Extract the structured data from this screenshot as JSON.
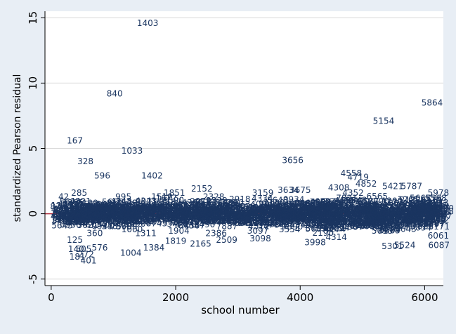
{
  "chart_data": {
    "type": "scatter",
    "xlabel": "school number",
    "ylabel": "standardized Pearson residual",
    "xlim": [
      -100,
      6300
    ],
    "ylim": [
      -5.5,
      15.5
    ],
    "x_ticks": [
      0,
      2000,
      4000,
      6000
    ],
    "y_ticks": [
      -5,
      0,
      5,
      10,
      15
    ],
    "grid": true,
    "reference_line_y": 0,
    "colors": {
      "background": "#e8eef5",
      "plot_bg": "#ffffff",
      "marker": "#1a3560",
      "grid": "#d9d9d9",
      "reference_line": "#b03040"
    },
    "labeled_points": [
      {
        "label": "1403",
        "x": 1550,
        "y": 14.6
      },
      {
        "label": "840",
        "x": 1020,
        "y": 9.2
      },
      {
        "label": "5864",
        "x": 6120,
        "y": 8.5
      },
      {
        "label": "5154",
        "x": 5340,
        "y": 7.1
      },
      {
        "label": "167",
        "x": 380,
        "y": 5.6
      },
      {
        "label": "1033",
        "x": 1300,
        "y": 4.8
      },
      {
        "label": "328",
        "x": 550,
        "y": 4.0
      },
      {
        "label": "3656",
        "x": 3880,
        "y": 4.1
      },
      {
        "label": "596",
        "x": 820,
        "y": 2.9
      },
      {
        "label": "1402",
        "x": 1620,
        "y": 2.9
      },
      {
        "label": "4558",
        "x": 4820,
        "y": 3.1
      },
      {
        "label": "4719",
        "x": 4930,
        "y": 2.8
      },
      {
        "label": "4852",
        "x": 5060,
        "y": 2.3
      },
      {
        "label": "5421",
        "x": 5490,
        "y": 2.1
      },
      {
        "label": "5787",
        "x": 5790,
        "y": 2.1
      },
      {
        "label": "5978",
        "x": 6220,
        "y": 1.6
      },
      {
        "label": "5568",
        "x": 6180,
        "y": 1.2
      },
      {
        "label": "5665",
        "x": 5930,
        "y": 1.2
      },
      {
        "label": "285",
        "x": 450,
        "y": 1.6
      },
      {
        "label": "42",
        "x": 200,
        "y": 1.3
      },
      {
        "label": "2152",
        "x": 2420,
        "y": 1.9
      },
      {
        "label": "1851",
        "x": 1980,
        "y": 1.6
      },
      {
        "label": "995",
        "x": 1160,
        "y": 1.3
      },
      {
        "label": "3159",
        "x": 3400,
        "y": 1.6
      },
      {
        "label": "3634",
        "x": 3810,
        "y": 1.8
      },
      {
        "label": "3675",
        "x": 4000,
        "y": 1.8
      },
      {
        "label": "4308",
        "x": 4620,
        "y": 2.0
      },
      {
        "label": "2918",
        "x": 3030,
        "y": 1.1
      },
      {
        "label": "2328",
        "x": 2610,
        "y": 1.3
      },
      {
        "label": "2330",
        "x": 2660,
        "y": 1.0
      },
      {
        "label": "1000",
        "x": 1300,
        "y": -1.2
      },
      {
        "label": "1311",
        "x": 1520,
        "y": -1.5
      },
      {
        "label": "1384",
        "x": 1650,
        "y": -2.6
      },
      {
        "label": "1004",
        "x": 1280,
        "y": -3.0
      },
      {
        "label": "1904",
        "x": 2050,
        "y": -1.3
      },
      {
        "label": "1819",
        "x": 2000,
        "y": -2.1
      },
      {
        "label": "2165",
        "x": 2400,
        "y": -2.3
      },
      {
        "label": "2386",
        "x": 2650,
        "y": -1.5
      },
      {
        "label": "2509",
        "x": 2820,
        "y": -2.0
      },
      {
        "label": "3098",
        "x": 3360,
        "y": -1.9
      },
      {
        "label": "3097",
        "x": 3320,
        "y": -1.3
      },
      {
        "label": "3998",
        "x": 4240,
        "y": -2.2
      },
      {
        "label": "4314",
        "x": 4580,
        "y": -1.8
      },
      {
        "label": "5301",
        "x": 5480,
        "y": -2.5
      },
      {
        "label": "5524",
        "x": 5680,
        "y": -2.4
      },
      {
        "label": "6087",
        "x": 6230,
        "y": -2.4
      },
      {
        "label": "6061",
        "x": 6220,
        "y": -1.7
      },
      {
        "label": "576",
        "x": 780,
        "y": -2.6
      },
      {
        "label": "401",
        "x": 600,
        "y": -3.6
      },
      {
        "label": "181",
        "x": 420,
        "y": -3.3
      },
      {
        "label": "140",
        "x": 400,
        "y": -2.7
      },
      {
        "label": "125",
        "x": 380,
        "y": -2.0
      },
      {
        "label": "272",
        "x": 560,
        "y": -3.1
      },
      {
        "label": "505",
        "x": 520,
        "y": -2.7
      },
      {
        "label": "360",
        "x": 700,
        "y": -1.5
      },
      {
        "label": "810",
        "x": 1020,
        "y": 0.8
      },
      {
        "label": "1510",
        "x": 1780,
        "y": 1.3
      },
      {
        "label": "1677",
        "x": 1850,
        "y": 1.2
      },
      {
        "label": "4352",
        "x": 4850,
        "y": 1.6
      },
      {
        "label": "4655",
        "x": 4720,
        "y": 1.0
      },
      {
        "label": "5304",
        "x": 5500,
        "y": 0.8
      },
      {
        "label": "6105",
        "x": 6240,
        "y": 0.4
      },
      {
        "label": "5015",
        "x": 5320,
        "y": -1.3
      },
      {
        "label": "4274",
        "x": 4560,
        "y": -1.2
      },
      {
        "label": "3554",
        "x": 3830,
        "y": -1.2
      },
      {
        "label": "6171",
        "x": 6230,
        "y": -1.0
      }
    ],
    "dense_band": {
      "x_range": [
        150,
        6300
      ],
      "y_range": [
        -1.5,
        1.2
      ]
    }
  }
}
